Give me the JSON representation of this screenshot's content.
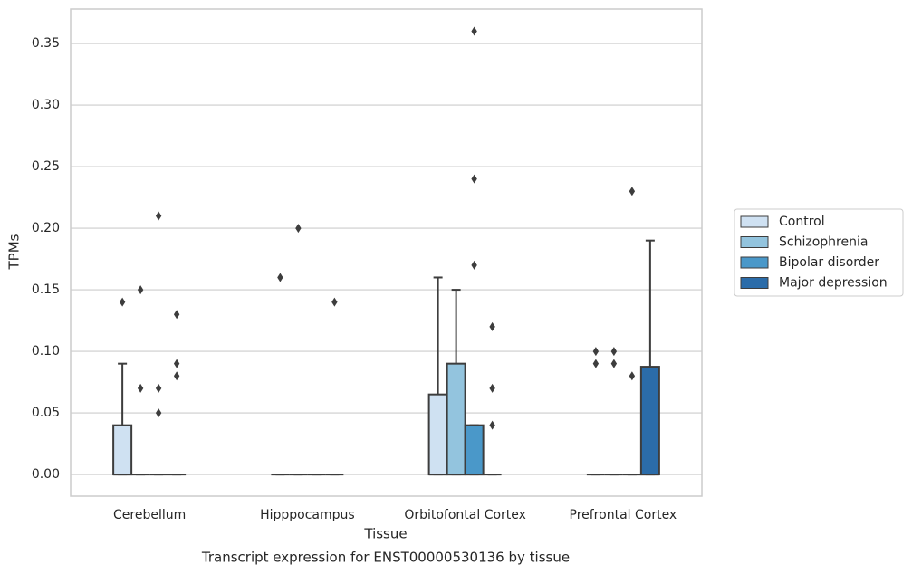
{
  "chart_data": {
    "type": "box",
    "title": "Transcript expression for ENST00000530136 by tissue",
    "xlabel": "Tissue",
    "ylabel": "TPMs",
    "categories": [
      "Cerebellum",
      "Hipppocampus",
      "Orbitofontal Cortex",
      "Prefrontal Cortex"
    ],
    "ylim": [
      -0.0176,
      0.378
    ],
    "yticks": [
      {
        "value": 0,
        "label": "0.00"
      },
      {
        "value": 0.05,
        "label": "0.05"
      },
      {
        "value": 0.1,
        "label": "0.10"
      },
      {
        "value": 0.15,
        "label": "0.15"
      },
      {
        "value": 0.2,
        "label": "0.20"
      },
      {
        "value": 0.25,
        "label": "0.25"
      },
      {
        "value": 0.3,
        "label": "0.30"
      },
      {
        "value": 0.35,
        "label": "0.35"
      }
    ],
    "grid": true,
    "legend": "right",
    "series": [
      {
        "name": "Control",
        "color": "#cfe1f2",
        "boxes": [
          {
            "low": 0,
            "q1": 0,
            "median": 0,
            "q3": 0.04,
            "high": 0.09,
            "fliers": [
              0.14
            ]
          },
          {
            "low": 0,
            "q1": 0,
            "median": 0,
            "q3": 0,
            "high": 0,
            "fliers": [
              0.16
            ]
          },
          {
            "low": 0,
            "q1": 0,
            "median": 0,
            "q3": 0.065,
            "high": 0.16,
            "fliers": []
          },
          {
            "low": 0,
            "q1": 0,
            "median": 0,
            "q3": 0,
            "high": 0,
            "fliers": [
              0.1,
              0.09
            ]
          }
        ]
      },
      {
        "name": "Schizophrenia",
        "color": "#93c4de",
        "boxes": [
          {
            "low": 0,
            "q1": 0,
            "median": 0,
            "q3": 0,
            "high": 0,
            "fliers": [
              0.15,
              0.07
            ]
          },
          {
            "low": 0,
            "q1": 0,
            "median": 0,
            "q3": 0,
            "high": 0,
            "fliers": [
              0.2
            ]
          },
          {
            "low": 0,
            "q1": 0,
            "median": 0,
            "q3": 0.09,
            "high": 0.15,
            "fliers": []
          },
          {
            "low": 0,
            "q1": 0,
            "median": 0,
            "q3": 0,
            "high": 0,
            "fliers": [
              0.1,
              0.09
            ]
          }
        ]
      },
      {
        "name": "Bipolar disorder",
        "color": "#4a98c9",
        "boxes": [
          {
            "low": 0,
            "q1": 0,
            "median": 0,
            "q3": 0,
            "high": 0,
            "fliers": [
              0.21,
              0.07,
              0.05
            ]
          },
          {
            "low": 0,
            "q1": 0,
            "median": 0,
            "q3": 0,
            "high": 0,
            "fliers": []
          },
          {
            "low": 0,
            "q1": 0,
            "median": 0,
            "q3": 0.04,
            "high": 0.04,
            "fliers": [
              0.36,
              0.24,
              0.17
            ]
          },
          {
            "low": 0,
            "q1": 0,
            "median": 0,
            "q3": 0,
            "high": 0,
            "fliers": [
              0.23,
              0.08
            ]
          }
        ]
      },
      {
        "name": "Major depression",
        "color": "#2b6ca9",
        "boxes": [
          {
            "low": 0,
            "q1": 0,
            "median": 0,
            "q3": 0,
            "high": 0,
            "fliers": [
              0.13,
              0.09,
              0.08
            ]
          },
          {
            "low": 0,
            "q1": 0,
            "median": 0,
            "q3": 0,
            "high": 0,
            "fliers": [
              0.14
            ]
          },
          {
            "low": 0,
            "q1": 0,
            "median": 0,
            "q3": 0,
            "high": 0,
            "fliers": [
              0.12,
              0.07,
              0.04
            ]
          },
          {
            "low": 0,
            "q1": 0,
            "median": 0,
            "q3": 0.0875,
            "high": 0.19,
            "fliers": []
          }
        ]
      }
    ]
  }
}
